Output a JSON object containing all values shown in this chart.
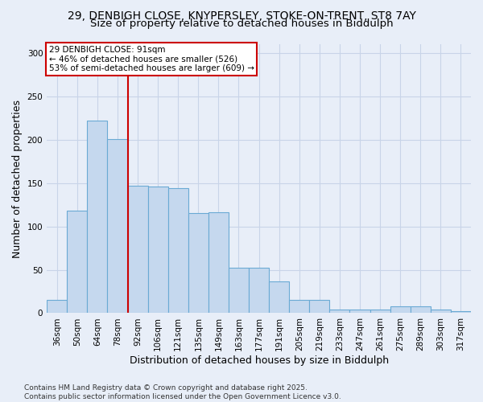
{
  "title_line1": "29, DENBIGH CLOSE, KNYPERSLEY, STOKE-ON-TRENT, ST8 7AY",
  "title_line2": "Size of property relative to detached houses in Biddulph",
  "xlabel": "Distribution of detached houses by size in Biddulph",
  "ylabel": "Number of detached properties",
  "categories": [
    "36sqm",
    "50sqm",
    "64sqm",
    "78sqm",
    "92sqm",
    "106sqm",
    "121sqm",
    "135sqm",
    "149sqm",
    "163sqm",
    "177sqm",
    "191sqm",
    "205sqm",
    "219sqm",
    "233sqm",
    "247sqm",
    "261sqm",
    "275sqm",
    "289sqm",
    "303sqm",
    "317sqm"
  ],
  "values": [
    15,
    118,
    222,
    201,
    147,
    146,
    144,
    115,
    116,
    52,
    52,
    37,
    15,
    15,
    4,
    4,
    4,
    8,
    8,
    4,
    2
  ],
  "bar_color": "#c5d8ee",
  "bar_edge_color": "#6aaad4",
  "annotation_box_text": "29 DENBIGH CLOSE: 91sqm\n← 46% of detached houses are smaller (526)\n53% of semi-detached houses are larger (609) →",
  "vline_color": "#cc0000",
  "footnote": "Contains HM Land Registry data © Crown copyright and database right 2025.\nContains public sector information licensed under the Open Government Licence v3.0.",
  "ylim": [
    0,
    310
  ],
  "background_color": "#e8eef8",
  "grid_color": "#c8d4e8",
  "title_fontsize": 10,
  "subtitle_fontsize": 9.5,
  "axis_label_fontsize": 9,
  "tick_fontsize": 7.5,
  "footnote_fontsize": 6.5
}
